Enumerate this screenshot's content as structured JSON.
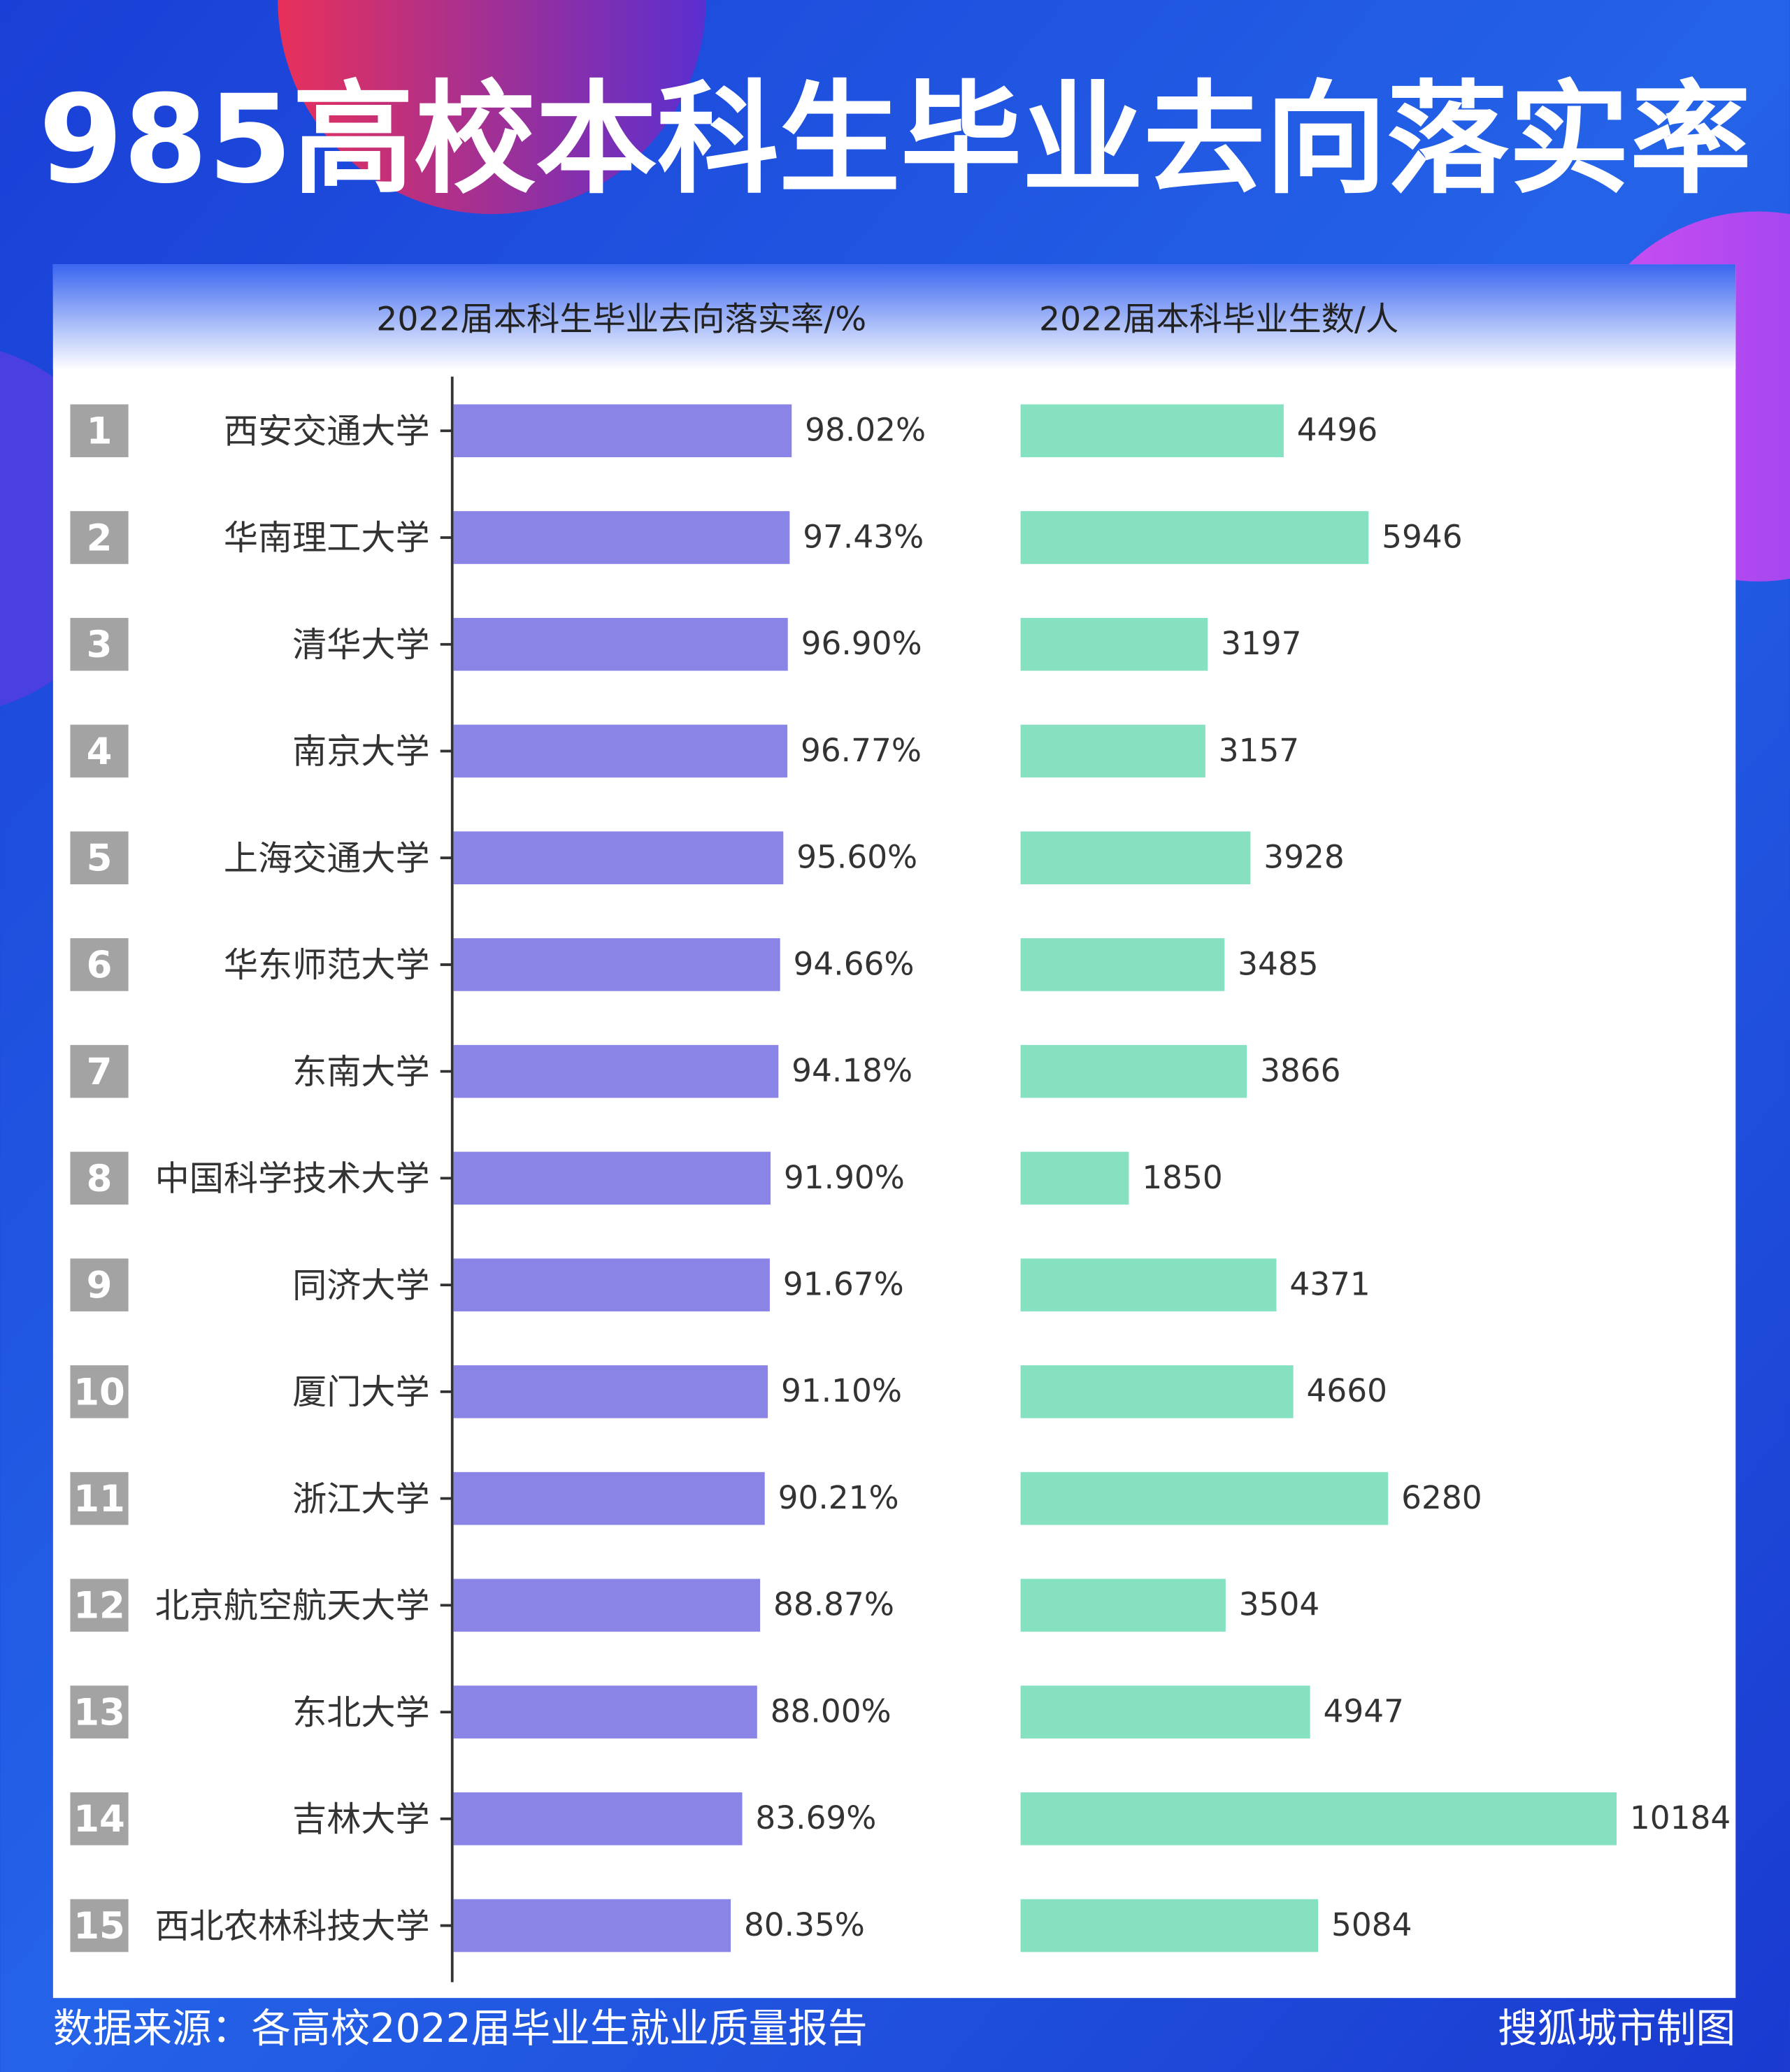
{
  "title": "985高校本科生毕业去向落实率",
  "source": "数据来源：各高校2022届毕业生就业质量报告",
  "credit": "搜狐城市制图",
  "chart_data": {
    "type": "bar",
    "orientation": "horizontal",
    "ranks": [
      "1",
      "2",
      "3",
      "4",
      "5",
      "6",
      "7",
      "8",
      "9",
      "10",
      "11",
      "12",
      "13",
      "14",
      "15"
    ],
    "categories": [
      "西安交通大学",
      "华南理工大学",
      "清华大学",
      "南京大学",
      "上海交通大学",
      "华东师范大学",
      "东南大学",
      "中国科学技术大学",
      "同济大学",
      "厦门大学",
      "浙江大学",
      "北京航空航天大学",
      "东北大学",
      "吉林大学",
      "西北农林科技大学"
    ],
    "series": [
      {
        "name": "2022届本科生毕业去向落实率/%",
        "color": "#8a84e6",
        "values": [
          98.02,
          97.43,
          96.9,
          96.77,
          95.6,
          94.66,
          94.18,
          91.9,
          91.67,
          91.1,
          90.21,
          88.87,
          88.0,
          83.69,
          80.35
        ],
        "value_labels": [
          "98.02%",
          "97.43%",
          "96.90%",
          "96.77%",
          "95.60%",
          "94.66%",
          "94.18%",
          "91.90%",
          "91.67%",
          "91.10%",
          "90.21%",
          "88.87%",
          "88.00%",
          "83.69%",
          "80.35%"
        ]
      },
      {
        "name": "2022届本科毕业生数/人",
        "color": "#85e1c0",
        "values": [
          4496,
          5946,
          3197,
          3157,
          3928,
          3485,
          3866,
          1850,
          4371,
          4660,
          6280,
          3504,
          4947,
          10184,
          5084
        ]
      }
    ]
  }
}
